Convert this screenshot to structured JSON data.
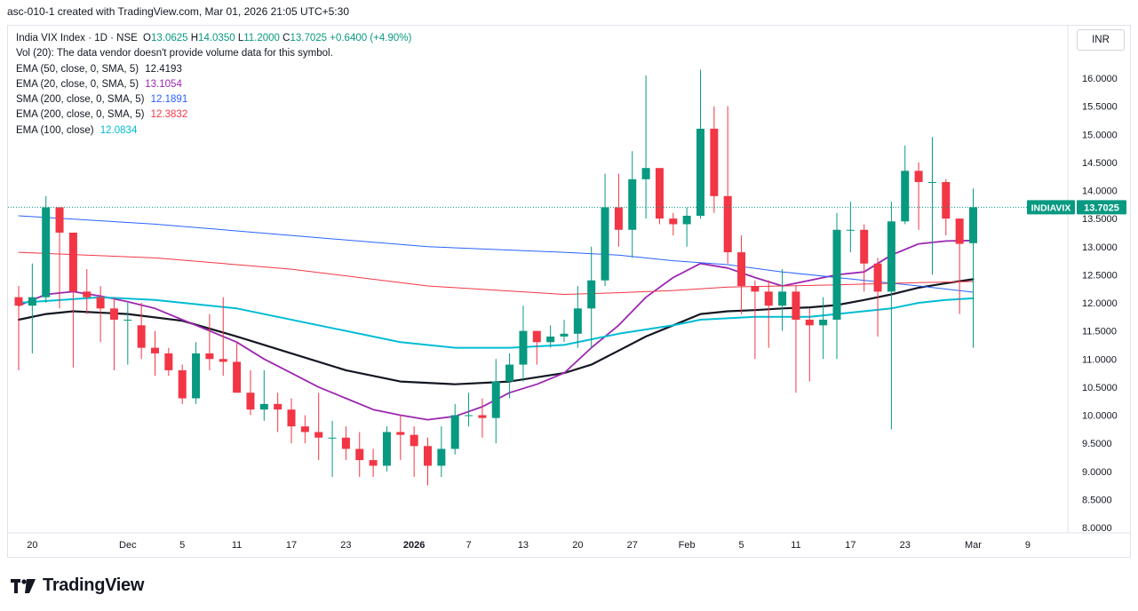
{
  "header": {
    "caption": "asc-010-1 created with TradingView.com, Mar 01, 2026 21:05 UTC+5:30"
  },
  "legend": {
    "symbol_line": {
      "name": "India VIX Index · 1D · NSE",
      "o_label": "O",
      "o": "13.0625",
      "h_label": "H",
      "h": "14.0350",
      "l_label": "L",
      "l": "11.2000",
      "c_label": "C",
      "c": "13.7025",
      "change": "+0.6400 (+4.90%)"
    },
    "volume_note": "Vol (20): The data vendor doesn't provide volume data for this symbol.",
    "indicators": [
      {
        "label": "EMA (50, close, 0, SMA, 5)",
        "value": "12.4193",
        "color": "#131722"
      },
      {
        "label": "EMA (20, close, 0, SMA, 5)",
        "value": "13.1054",
        "color": "#9c27b0"
      },
      {
        "label": "SMA (200, close, 0, SMA, 5)",
        "value": "12.1891",
        "color": "#2962ff"
      },
      {
        "label": "EMA (200, close, 0, SMA, 5)",
        "value": "12.3832",
        "color": "#f23645"
      },
      {
        "label": "EMA (100, close)",
        "value": "12.0834",
        "color": "#00bcd4"
      }
    ]
  },
  "currency": "INR",
  "price_tag": {
    "symbol": "INDIAVIX",
    "value": "13.7025"
  },
  "footer": {
    "brand": "TradingView"
  },
  "colors": {
    "up": "#089981",
    "down": "#f23645",
    "ema50": "#131722",
    "ema20": "#9c27b0",
    "sma200": "#2962ff",
    "ema200": "#f23645",
    "ema100": "#00bcd4"
  },
  "chart_data": {
    "type": "candlestick",
    "ylim": [
      8.0,
      16.4
    ],
    "y_ticks": [
      "8.0000",
      "8.5000",
      "9.0000",
      "9.5000",
      "10.0000",
      "10.5000",
      "11.0000",
      "11.5000",
      "12.0000",
      "12.5000",
      "13.0000",
      "13.5000",
      "14.0000",
      "14.5000",
      "15.0000",
      "15.5000",
      "16.0000"
    ],
    "x_ticks": [
      {
        "label": "20",
        "i": 1
      },
      {
        "label": "Dec",
        "i": 8
      },
      {
        "label": "5",
        "i": 12
      },
      {
        "label": "11",
        "i": 16
      },
      {
        "label": "17",
        "i": 20
      },
      {
        "label": "23",
        "i": 24
      },
      {
        "label": "2026",
        "i": 29,
        "bold": true
      },
      {
        "label": "7",
        "i": 33
      },
      {
        "label": "13",
        "i": 37
      },
      {
        "label": "20",
        "i": 41
      },
      {
        "label": "27",
        "i": 45
      },
      {
        "label": "Feb",
        "i": 49
      },
      {
        "label": "5",
        "i": 53
      },
      {
        "label": "11",
        "i": 57
      },
      {
        "label": "17",
        "i": 61
      },
      {
        "label": "23",
        "i": 65
      },
      {
        "label": "Mar",
        "i": 70
      },
      {
        "label": "9",
        "i": 74
      }
    ],
    "candles": [
      [
        12.1,
        12.3,
        10.8,
        11.95
      ],
      [
        11.95,
        12.7,
        11.1,
        12.1
      ],
      [
        12.1,
        13.9,
        12.0,
        13.7
      ],
      [
        13.7,
        13.7,
        11.9,
        13.25
      ],
      [
        13.25,
        13.25,
        10.85,
        12.2
      ],
      [
        12.2,
        12.6,
        11.8,
        12.1
      ],
      [
        12.1,
        12.3,
        11.3,
        11.9
      ],
      [
        11.9,
        12.1,
        10.8,
        11.7
      ],
      [
        11.7,
        12.0,
        10.9,
        11.7
      ],
      [
        11.6,
        12.0,
        11.0,
        11.2
      ],
      [
        11.2,
        11.5,
        10.7,
        11.1
      ],
      [
        11.1,
        11.2,
        10.7,
        10.8
      ],
      [
        10.8,
        10.9,
        10.2,
        10.3
      ],
      [
        10.3,
        11.3,
        10.2,
        11.1
      ],
      [
        11.1,
        11.8,
        10.8,
        11.0
      ],
      [
        11.0,
        12.1,
        10.7,
        10.95
      ],
      [
        10.95,
        11.3,
        10.4,
        10.4
      ],
      [
        10.4,
        10.8,
        10.0,
        10.1
      ],
      [
        10.1,
        10.8,
        9.9,
        10.2
      ],
      [
        10.2,
        10.4,
        9.7,
        10.1
      ],
      [
        10.1,
        10.3,
        9.5,
        9.8
      ],
      [
        9.8,
        10.0,
        9.5,
        9.7
      ],
      [
        9.7,
        10.4,
        9.2,
        9.6
      ],
      [
        9.6,
        9.9,
        8.9,
        9.6
      ],
      [
        9.6,
        9.8,
        9.2,
        9.4
      ],
      [
        9.4,
        9.7,
        8.9,
        9.2
      ],
      [
        9.2,
        9.4,
        8.9,
        9.1
      ],
      [
        9.1,
        9.8,
        9.0,
        9.7
      ],
      [
        9.7,
        10.0,
        9.2,
        9.65
      ],
      [
        9.65,
        9.8,
        8.9,
        9.45
      ],
      [
        9.45,
        9.6,
        8.75,
        9.1
      ],
      [
        9.1,
        9.8,
        8.9,
        9.4
      ],
      [
        9.4,
        10.2,
        9.3,
        10.0
      ],
      [
        10.0,
        10.4,
        9.8,
        10.0
      ],
      [
        10.0,
        10.3,
        9.6,
        9.95
      ],
      [
        9.95,
        11.0,
        9.5,
        10.6
      ],
      [
        10.6,
        11.1,
        10.3,
        10.9
      ],
      [
        10.9,
        11.95,
        10.6,
        11.5
      ],
      [
        11.5,
        11.5,
        10.9,
        11.3
      ],
      [
        11.3,
        11.6,
        11.2,
        11.4
      ],
      [
        11.4,
        11.7,
        11.3,
        11.45
      ],
      [
        11.45,
        12.3,
        11.2,
        11.9
      ],
      [
        11.9,
        13.0,
        11.2,
        12.4
      ],
      [
        12.4,
        14.3,
        12.3,
        13.7
      ],
      [
        13.7,
        14.3,
        13.0,
        13.3
      ],
      [
        13.3,
        14.7,
        12.8,
        14.2
      ],
      [
        14.2,
        16.05,
        13.5,
        14.4
      ],
      [
        14.4,
        14.4,
        13.4,
        13.5
      ],
      [
        13.5,
        13.6,
        13.2,
        13.4
      ],
      [
        13.4,
        13.7,
        13.0,
        13.55
      ],
      [
        13.55,
        16.15,
        13.5,
        15.1
      ],
      [
        15.1,
        15.5,
        13.6,
        13.9
      ],
      [
        13.9,
        15.5,
        12.7,
        12.9
      ],
      [
        12.9,
        13.2,
        11.8,
        12.3
      ],
      [
        12.3,
        12.4,
        11.0,
        12.2
      ],
      [
        12.2,
        12.4,
        11.2,
        11.95
      ],
      [
        11.95,
        12.6,
        11.5,
        12.2
      ],
      [
        12.2,
        12.3,
        10.4,
        11.7
      ],
      [
        11.7,
        11.9,
        10.6,
        11.6
      ],
      [
        11.6,
        12.1,
        11.0,
        11.7
      ],
      [
        11.7,
        13.6,
        11.0,
        13.3
      ],
      [
        13.3,
        13.8,
        12.9,
        13.3
      ],
      [
        13.3,
        13.4,
        12.2,
        12.7
      ],
      [
        12.7,
        12.8,
        11.4,
        12.2
      ],
      [
        12.2,
        13.8,
        9.75,
        13.45
      ],
      [
        13.45,
        14.8,
        13.4,
        14.35
      ],
      [
        14.35,
        14.5,
        13.3,
        14.15
      ],
      [
        14.15,
        14.95,
        12.5,
        14.15
      ],
      [
        14.15,
        14.2,
        13.2,
        13.5
      ],
      [
        13.5,
        13.5,
        11.8,
        13.05
      ],
      [
        13.0625,
        14.035,
        11.2,
        13.7025
      ]
    ],
    "series": [
      {
        "name": "EMA (50, close, 0, SMA, 5)",
        "color": "#131722",
        "width": 2.2,
        "points": [
          [
            0,
            11.7
          ],
          [
            2,
            11.8
          ],
          [
            4,
            11.85
          ],
          [
            8,
            11.8
          ],
          [
            12,
            11.68
          ],
          [
            16,
            11.4
          ],
          [
            20,
            11.1
          ],
          [
            24,
            10.8
          ],
          [
            28,
            10.6
          ],
          [
            32,
            10.55
          ],
          [
            36,
            10.6
          ],
          [
            40,
            10.75
          ],
          [
            42,
            10.9
          ],
          [
            44,
            11.15
          ],
          [
            46,
            11.4
          ],
          [
            48,
            11.6
          ],
          [
            50,
            11.8
          ],
          [
            52,
            11.85
          ],
          [
            54,
            11.87
          ],
          [
            56,
            11.9
          ],
          [
            58,
            11.92
          ],
          [
            60,
            11.96
          ],
          [
            62,
            12.05
          ],
          [
            64,
            12.15
          ],
          [
            66,
            12.27
          ],
          [
            68,
            12.35
          ],
          [
            70,
            12.42
          ]
        ]
      },
      {
        "name": "EMA (20, close, 0, SMA, 5)",
        "color": "#9c27b0",
        "width": 1.8,
        "points": [
          [
            0,
            11.95
          ],
          [
            2,
            12.15
          ],
          [
            4,
            12.2
          ],
          [
            6,
            12.12
          ],
          [
            8,
            12.02
          ],
          [
            10,
            11.9
          ],
          [
            12,
            11.7
          ],
          [
            14,
            11.5
          ],
          [
            16,
            11.3
          ],
          [
            18,
            11.0
          ],
          [
            20,
            10.75
          ],
          [
            22,
            10.5
          ],
          [
            24,
            10.3
          ],
          [
            26,
            10.1
          ],
          [
            28,
            10.0
          ],
          [
            30,
            9.92
          ],
          [
            32,
            9.98
          ],
          [
            34,
            10.15
          ],
          [
            36,
            10.4
          ],
          [
            38,
            10.55
          ],
          [
            40,
            10.75
          ],
          [
            42,
            11.2
          ],
          [
            44,
            11.6
          ],
          [
            46,
            12.1
          ],
          [
            48,
            12.45
          ],
          [
            50,
            12.7
          ],
          [
            52,
            12.62
          ],
          [
            54,
            12.45
          ],
          [
            56,
            12.3
          ],
          [
            58,
            12.4
          ],
          [
            60,
            12.5
          ],
          [
            62,
            12.55
          ],
          [
            64,
            12.85
          ],
          [
            66,
            13.05
          ],
          [
            68,
            13.1
          ],
          [
            70,
            13.11
          ]
        ]
      },
      {
        "name": "SMA (200, close, 0, SMA, 5)",
        "color": "#2962ff",
        "width": 1,
        "points": [
          [
            0,
            13.55
          ],
          [
            10,
            13.4
          ],
          [
            20,
            13.2
          ],
          [
            30,
            13.0
          ],
          [
            40,
            12.9
          ],
          [
            44,
            12.85
          ],
          [
            48,
            12.75
          ],
          [
            52,
            12.68
          ],
          [
            56,
            12.55
          ],
          [
            60,
            12.45
          ],
          [
            66,
            12.3
          ],
          [
            70,
            12.19
          ]
        ]
      },
      {
        "name": "EMA (200, close, 0, SMA, 5)",
        "color": "#f23645",
        "width": 1,
        "points": [
          [
            0,
            12.9
          ],
          [
            10,
            12.8
          ],
          [
            20,
            12.6
          ],
          [
            30,
            12.3
          ],
          [
            40,
            12.15
          ],
          [
            44,
            12.18
          ],
          [
            48,
            12.22
          ],
          [
            52,
            12.28
          ],
          [
            56,
            12.3
          ],
          [
            60,
            12.32
          ],
          [
            66,
            12.36
          ],
          [
            70,
            12.38
          ]
        ]
      },
      {
        "name": "EMA (100, close)",
        "color": "#00bcd4",
        "width": 2,
        "points": [
          [
            0,
            12.0
          ],
          [
            6,
            12.1
          ],
          [
            10,
            12.05
          ],
          [
            16,
            11.9
          ],
          [
            22,
            11.6
          ],
          [
            28,
            11.3
          ],
          [
            32,
            11.2
          ],
          [
            36,
            11.2
          ],
          [
            40,
            11.25
          ],
          [
            44,
            11.45
          ],
          [
            48,
            11.6
          ],
          [
            50,
            11.7
          ],
          [
            54,
            11.75
          ],
          [
            58,
            11.75
          ],
          [
            60,
            11.8
          ],
          [
            64,
            11.9
          ],
          [
            66,
            12.0
          ],
          [
            68,
            12.05
          ],
          [
            70,
            12.08
          ]
        ]
      }
    ]
  }
}
